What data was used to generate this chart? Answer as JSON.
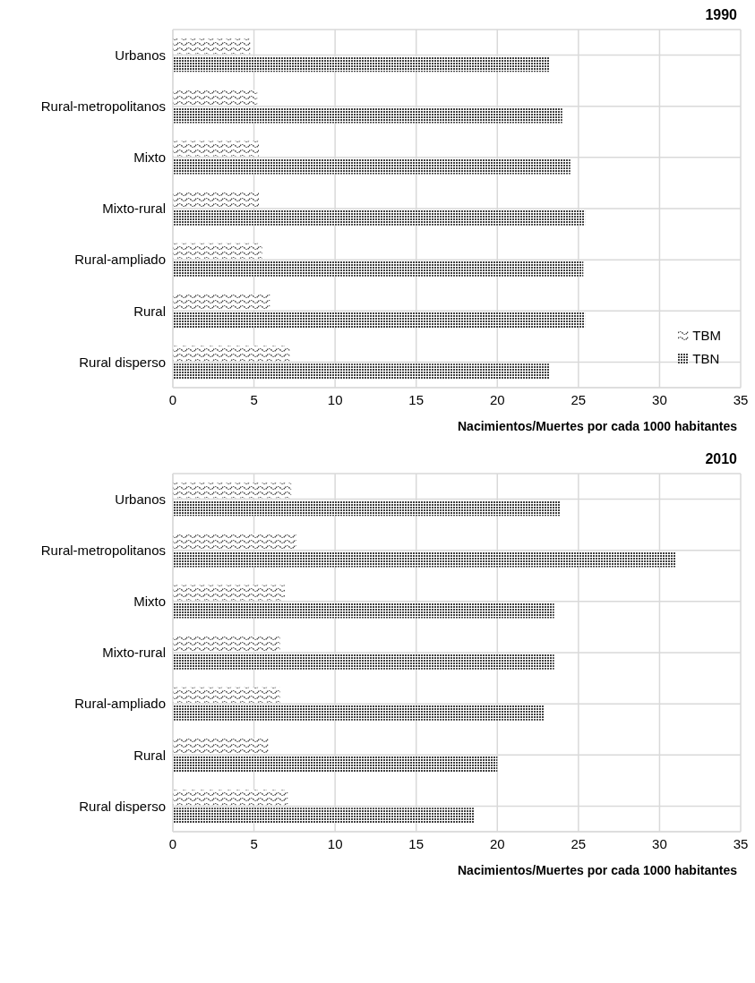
{
  "chart_data": [
    {
      "type": "bar",
      "orientation": "horizontal",
      "title": "1990",
      "xlabel": "Nacimientos/Muertes por cada 1000 habitantes",
      "categories": [
        "Urbanos",
        "Rural-metropolitanos",
        "Mixto",
        "Mixto-rural",
        "Rural-ampliado",
        "Rural",
        "Rural disperso"
      ],
      "series": [
        {
          "name": "TBM",
          "color": "#404040",
          "values": [
            4.8,
            5.2,
            5.3,
            5.3,
            5.5,
            6.0,
            7.2
          ]
        },
        {
          "name": "TBN",
          "color": "#404040",
          "values": [
            23.2,
            24.0,
            24.5,
            25.4,
            25.3,
            25.4,
            23.2
          ]
        }
      ],
      "xlim": [
        0,
        35
      ],
      "xticks": [
        0,
        5,
        10,
        15,
        20,
        25,
        30,
        35
      ],
      "grid": true,
      "legend": "bottom right"
    },
    {
      "type": "bar",
      "orientation": "horizontal",
      "title": "2010",
      "xlabel": "Nacimientos/Muertes por cada 1000 habitantes",
      "categories": [
        "Urbanos",
        "Rural-metropolitanos",
        "Mixto",
        "Mixto-rural",
        "Rural-ampliado",
        "Rural",
        "Rural disperso"
      ],
      "series": [
        {
          "color": "#404040",
          "values": [
            7.3,
            7.6,
            6.9,
            6.6,
            6.6,
            5.9,
            7.1
          ]
        },
        {
          "color": "#404040",
          "values": [
            23.9,
            31.0,
            23.5,
            23.5,
            22.9,
            20.0,
            18.6
          ]
        }
      ],
      "xlim": [
        0,
        35
      ],
      "xticks": [
        0,
        5,
        10,
        15,
        20,
        25,
        30,
        35
      ],
      "grid": true
    }
  ]
}
